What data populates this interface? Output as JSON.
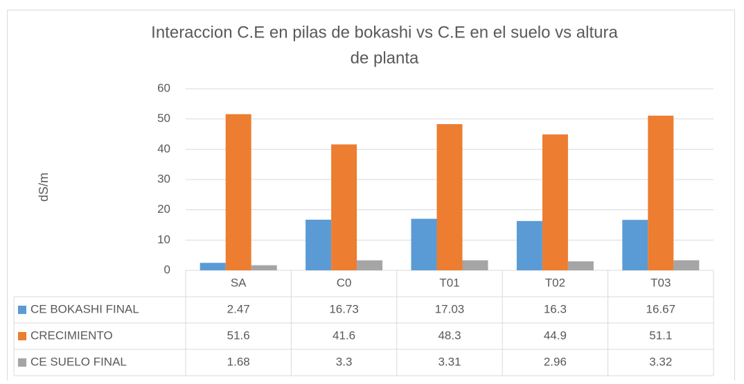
{
  "chart_data": {
    "type": "bar",
    "title": [
      "Interaccion C.E en pilas de bokashi vs C.E en el suelo vs altura",
      "de planta"
    ],
    "y_label": "dS/m",
    "categories": [
      "SA",
      "C0",
      "T01",
      "T02",
      "T03"
    ],
    "series": [
      {
        "name": "CE BOKASHI FINAL",
        "color": "#5b9bd5",
        "values": [
          2.47,
          16.73,
          17.03,
          16.3,
          16.67
        ]
      },
      {
        "name": "CRECIMIENTO",
        "color": "#ed7d31",
        "values": [
          51.6,
          41.6,
          48.3,
          44.9,
          51.1
        ]
      },
      {
        "name": "CE SUELO FINAL",
        "color": "#a5a5a5",
        "values": [
          1.68,
          3.3,
          3.31,
          2.96,
          3.32
        ]
      }
    ],
    "ylim": [
      0,
      60
    ],
    "yticks": [
      0,
      10,
      20,
      30,
      40,
      50,
      60
    ],
    "grid": true
  }
}
